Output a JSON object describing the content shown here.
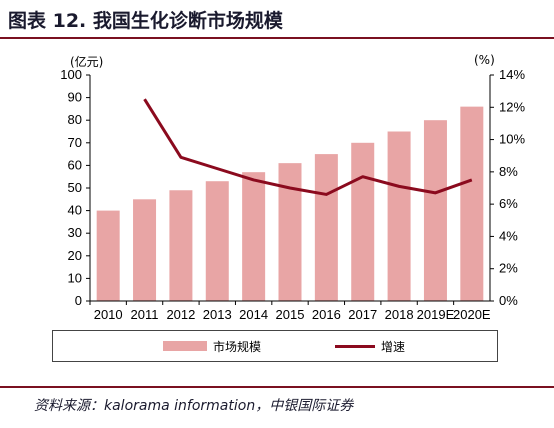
{
  "title": "图表 12. 我国生化诊断市场规模",
  "source": "资料来源：kalorama information，中银国际证券",
  "colors": {
    "bar": "#e8a5a5",
    "line": "#8b0a1e",
    "rule": "#7a1020"
  },
  "chart_data": {
    "type": "bar",
    "categories": [
      "2010",
      "2011",
      "2012",
      "2013",
      "2014",
      "2015",
      "2016",
      "2017",
      "2018",
      "2019E",
      "2020E"
    ],
    "left_axis": {
      "unit": "(亿元)",
      "ticks": [
        "0",
        "10",
        "20",
        "30",
        "40",
        "50",
        "60",
        "70",
        "80",
        "90",
        "100"
      ],
      "ylim": [
        0,
        100
      ]
    },
    "right_axis": {
      "unit": "(%)",
      "ticks": [
        "0%",
        "2%",
        "4%",
        "6%",
        "8%",
        "10%",
        "12%",
        "14%"
      ],
      "ylim": [
        0,
        14
      ]
    },
    "series": [
      {
        "name": "市场规模",
        "kind": "bar",
        "axis": "left",
        "values": [
          40,
          45,
          49,
          53,
          57,
          61,
          65,
          70,
          75,
          80,
          86
        ]
      },
      {
        "name": "增速",
        "kind": "line",
        "axis": "right",
        "values": [
          null,
          12.5,
          8.9,
          8.2,
          7.5,
          7.0,
          6.6,
          7.7,
          7.1,
          6.7,
          7.5
        ]
      }
    ],
    "legend_position": "bottom"
  }
}
